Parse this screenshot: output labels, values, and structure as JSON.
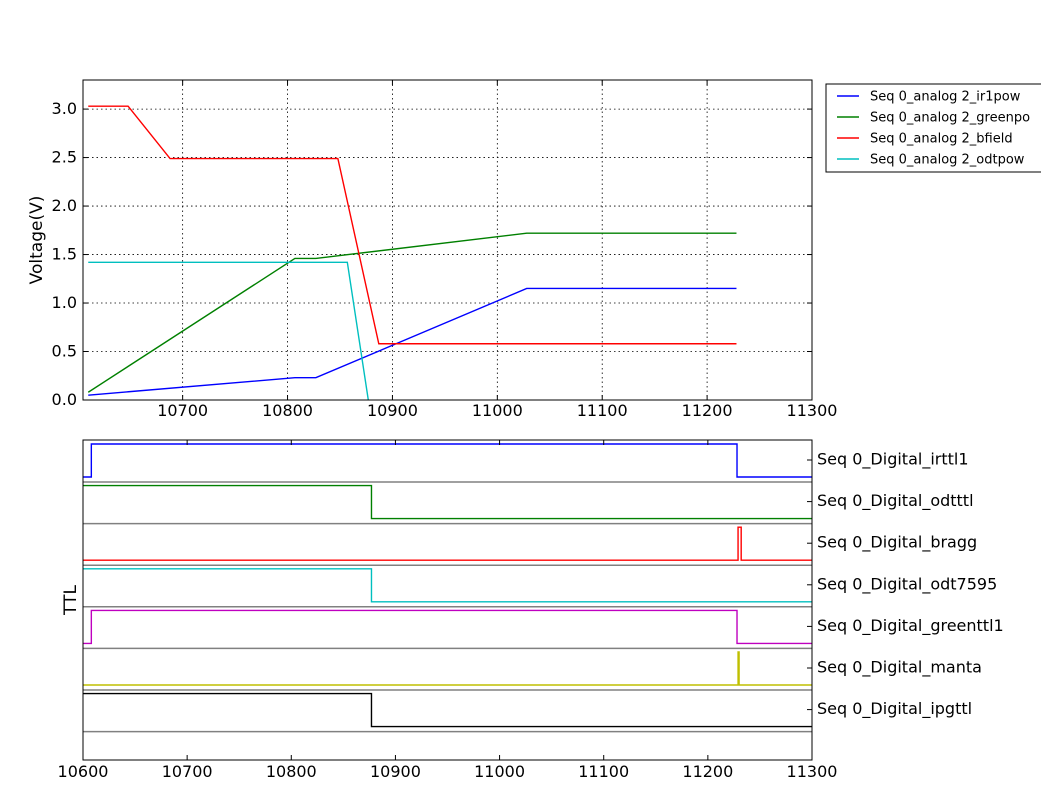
{
  "chart_data": [
    {
      "type": "line",
      "ylabel": "Voltage(V)",
      "xlabel": "",
      "xlim": [
        10605,
        11300
      ],
      "ylim": [
        0.0,
        3.3
      ],
      "xticks": [
        10700,
        10800,
        10900,
        11000,
        11100,
        11200,
        11300
      ],
      "xtick_labels": [
        "10700",
        "10800",
        "10900",
        "11000",
        "11100",
        "11200",
        "11300"
      ],
      "yticks": [
        0.0,
        0.5,
        1.0,
        1.5,
        2.0,
        2.5,
        3.0
      ],
      "ytick_labels": [
        "0.0",
        "0.5",
        "1.0",
        "1.5",
        "2.0",
        "2.5",
        "3.0"
      ],
      "grid": true,
      "legend_position": "outside-top-right",
      "series": [
        {
          "name": "Seq 0_analog 2_ir1pow",
          "color": "#0000ff",
          "x": [
            10610,
            10807,
            10827,
            11028,
            11228
          ],
          "y": [
            0.05,
            0.23,
            0.23,
            1.15,
            1.15
          ]
        },
        {
          "name": "Seq 0_analog 2_greenpo",
          "color": "#008000",
          "x": [
            10610,
            10807,
            10827,
            11028,
            11228
          ],
          "y": [
            0.08,
            1.46,
            1.46,
            1.72,
            1.72
          ]
        },
        {
          "name": "Seq 0_analog 2_bfield",
          "color": "#ff0000",
          "x": [
            10610,
            10648,
            10688,
            10848,
            10887,
            11228
          ],
          "y": [
            3.03,
            3.03,
            2.49,
            2.49,
            0.58,
            0.58
          ]
        },
        {
          "name": "Seq 0_analog 2_odtpow",
          "color": "#00bfbf",
          "x": [
            10610,
            10857,
            10877
          ],
          "y": [
            1.42,
            1.42,
            0.0
          ]
        }
      ]
    },
    {
      "type": "line",
      "ylabel": "TTL",
      "xlabel": "",
      "xlim": [
        10600,
        11300
      ],
      "xticks": [
        10600,
        10700,
        10800,
        10900,
        11000,
        11100,
        11200,
        11300
      ],
      "xtick_labels": [
        "10600",
        "10700",
        "10800",
        "10900",
        "11000",
        "11100",
        "11200",
        "11300"
      ],
      "grid": false,
      "series": [
        {
          "name": "Seq 0_Digital_irttl1",
          "color": "#0000ff",
          "x": [
            10600,
            10608,
            10608,
            11228,
            11228,
            11300
          ],
          "y": [
            0,
            0,
            1,
            1,
            0,
            0
          ]
        },
        {
          "name": "Seq 0_Digital_odtttl",
          "color": "#008000",
          "x": [
            10600,
            10877,
            10877,
            11300
          ],
          "y": [
            1,
            1,
            0,
            0
          ]
        },
        {
          "name": "Seq 0_Digital_bragg",
          "color": "#ff0000",
          "x": [
            10600,
            11229,
            11229,
            11232,
            11232,
            11300
          ],
          "y": [
            0,
            0,
            1,
            1,
            0,
            0
          ]
        },
        {
          "name": "Seq 0_Digital_odt7595",
          "color": "#00bfbf",
          "x": [
            10600,
            10877,
            10877,
            11300
          ],
          "y": [
            1,
            1,
            0,
            0
          ]
        },
        {
          "name": "Seq 0_Digital_greenttl1",
          "color": "#bf00bf",
          "x": [
            10600,
            10608,
            10608,
            11228,
            11228,
            11300
          ],
          "y": [
            0,
            0,
            1,
            1,
            0,
            0
          ]
        },
        {
          "name": "Seq 0_Digital_manta",
          "color": "#bfbf00",
          "x": [
            10600,
            11229,
            11229,
            11230,
            11230,
            11300
          ],
          "y": [
            0,
            0,
            1,
            1,
            0,
            0
          ]
        },
        {
          "name": "Seq 0_Digital_ipgttl",
          "color": "#000000",
          "x": [
            10600,
            10877,
            10877,
            11300
          ],
          "y": [
            1,
            1,
            0,
            0
          ]
        }
      ]
    }
  ]
}
